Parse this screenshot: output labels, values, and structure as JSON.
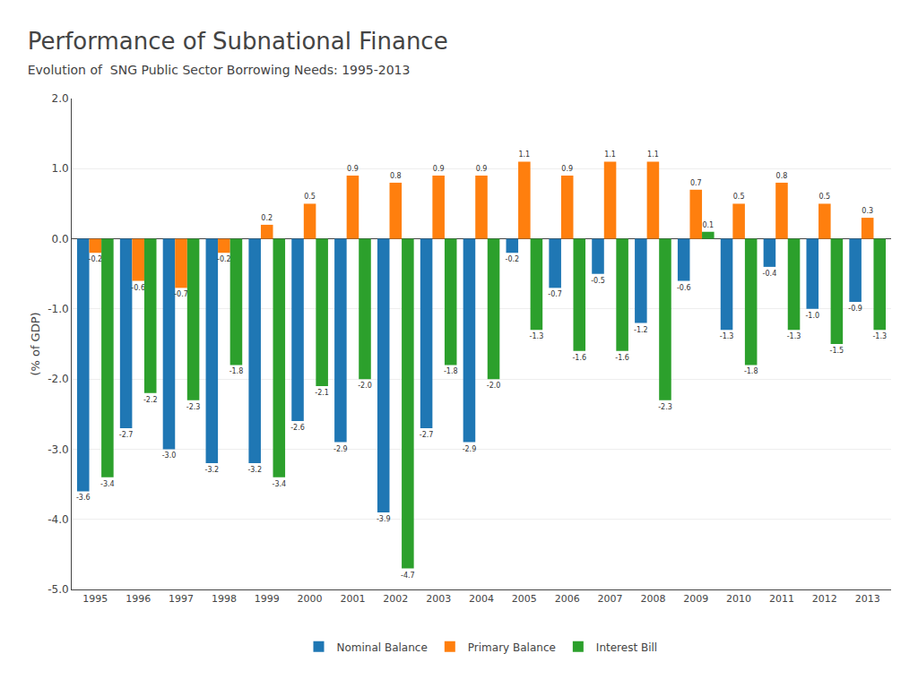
{
  "chart_data": {
    "type": "bar",
    "title": "Performance of Subnational Finance",
    "subtitle": "Evolution of  SNG Public Sector Borrowing Needs: 1995-2013",
    "ylabel": "(% of GDP)",
    "categories": [
      1995,
      1996,
      1997,
      1998,
      1999,
      2000,
      2001,
      2002,
      2003,
      2004,
      2005,
      2006,
      2007,
      2008,
      2009,
      2010,
      2011,
      2012,
      2013
    ],
    "series": [
      {
        "name": "Nominal Balance",
        "values": [
          -3.6,
          -2.7,
          -3.0,
          -3.2,
          -3.2,
          -2.6,
          -2.9,
          -3.9,
          -2.7,
          -2.9,
          -0.2,
          -0.7,
          -0.5,
          -1.2,
          -0.6,
          -1.3,
          -0.4,
          -1.0,
          -0.9
        ],
        "value_labels": [
          "-3.6",
          "-2.7",
          "-3.0",
          "-3.2",
          "-3.2",
          "-2.6",
          "-2.9",
          "-3.9",
          "-2.7",
          "-2.9",
          "-0.2",
          "-0.7",
          "-0.5",
          "-1.2",
          "-0.6",
          "-1.3",
          "-0.4",
          "-1.0",
          "-0.9"
        ]
      },
      {
        "name": "Primary Balance",
        "values": [
          -0.2,
          -0.6,
          -0.7,
          -0.2,
          0.2,
          0.5,
          0.9,
          0.8,
          0.9,
          0.9,
          1.1,
          0.9,
          1.1,
          1.1,
          0.7,
          0.5,
          0.8,
          0.5,
          0.3
        ],
        "value_labels": [
          "-0.2",
          "-0.6",
          "-0.7",
          "-0.2",
          "0.2",
          "0.5",
          "0.9",
          "0.8",
          "0.9",
          "0.9",
          "1.1",
          "0.9",
          "1.1",
          "1.1",
          "0.7",
          "0.5",
          "0.8",
          "0.5",
          "0.3"
        ]
      },
      {
        "name": "Interest Bill",
        "values": [
          -3.4,
          -2.2,
          -2.3,
          -1.8,
          -3.4,
          -2.1,
          -2.0,
          -4.7,
          -1.8,
          -2.0,
          -1.3,
          -1.6,
          -1.6,
          -2.3,
          0.1,
          -1.8,
          -1.3,
          -1.5,
          -1.3
        ],
        "value_labels": [
          "-3.4",
          "-2.2",
          "-2.3",
          "-1.8",
          "-3.4",
          "-2.1",
          "-2.0",
          "-4.7",
          "-1.8",
          "-2.0",
          "-1.3",
          "-1.6",
          "-1.6",
          "-2.3",
          "0.1",
          "-1.8",
          "-1.3",
          "-1.5",
          "-1.3"
        ]
      }
    ],
    "ylim": [
      -5.0,
      2.0
    ],
    "yticks": [
      {
        "value": -5.0,
        "label": "-5.0"
      },
      {
        "value": -4.0,
        "label": "-4.0"
      },
      {
        "value": -3.0,
        "label": "-3.0"
      },
      {
        "value": -2.0,
        "label": "-2.0"
      },
      {
        "value": -1.0,
        "label": "-1.0"
      },
      {
        "value": 0.0,
        "label": "0.0"
      },
      {
        "value": 1.0,
        "label": "1.0"
      },
      {
        "value": 2.0,
        "label": "2.0"
      }
    ],
    "grid": true,
    "legend": "bottom",
    "data_labels": true
  }
}
